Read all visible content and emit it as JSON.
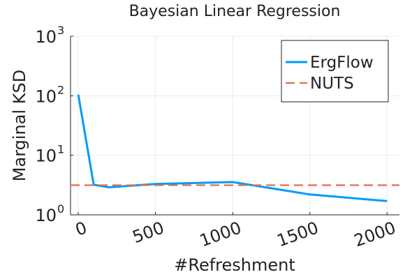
{
  "chart_data": {
    "type": "line",
    "title": "Bayesian Linear Regression",
    "xlabel": "#Refreshment",
    "ylabel": "Marginal KSD",
    "xlim": [
      -50,
      2080
    ],
    "ylim_log10": [
      0,
      3
    ],
    "y_scale": "log",
    "grid": true,
    "legend_position": "top-right",
    "x_ticks": [
      {
        "value": 0,
        "label": "0"
      },
      {
        "value": 500,
        "label": "500"
      },
      {
        "value": 1000,
        "label": "1000"
      },
      {
        "value": 1500,
        "label": "1500"
      },
      {
        "value": 2000,
        "label": "2000"
      }
    ],
    "y_ticks": [
      {
        "value": 1,
        "base": "10",
        "exp": "0"
      },
      {
        "value": 10,
        "base": "10",
        "exp": "1"
      },
      {
        "value": 100,
        "base": "10",
        "exp": "2"
      },
      {
        "value": 1000,
        "base": "10",
        "exp": "3"
      }
    ],
    "series": [
      {
        "name": "ErgFlow",
        "color": "#009AFA",
        "style": "solid",
        "x": [
          0,
          100,
          200,
          500,
          1000,
          1500,
          2000
        ],
        "y": [
          105,
          3.2,
          2.9,
          3.3,
          3.55,
          2.2,
          1.7
        ]
      },
      {
        "name": "NUTS",
        "color": "#E26F46",
        "style": "dashed",
        "x": [
          -50,
          2080
        ],
        "y": [
          3.15,
          3.15
        ]
      }
    ]
  }
}
